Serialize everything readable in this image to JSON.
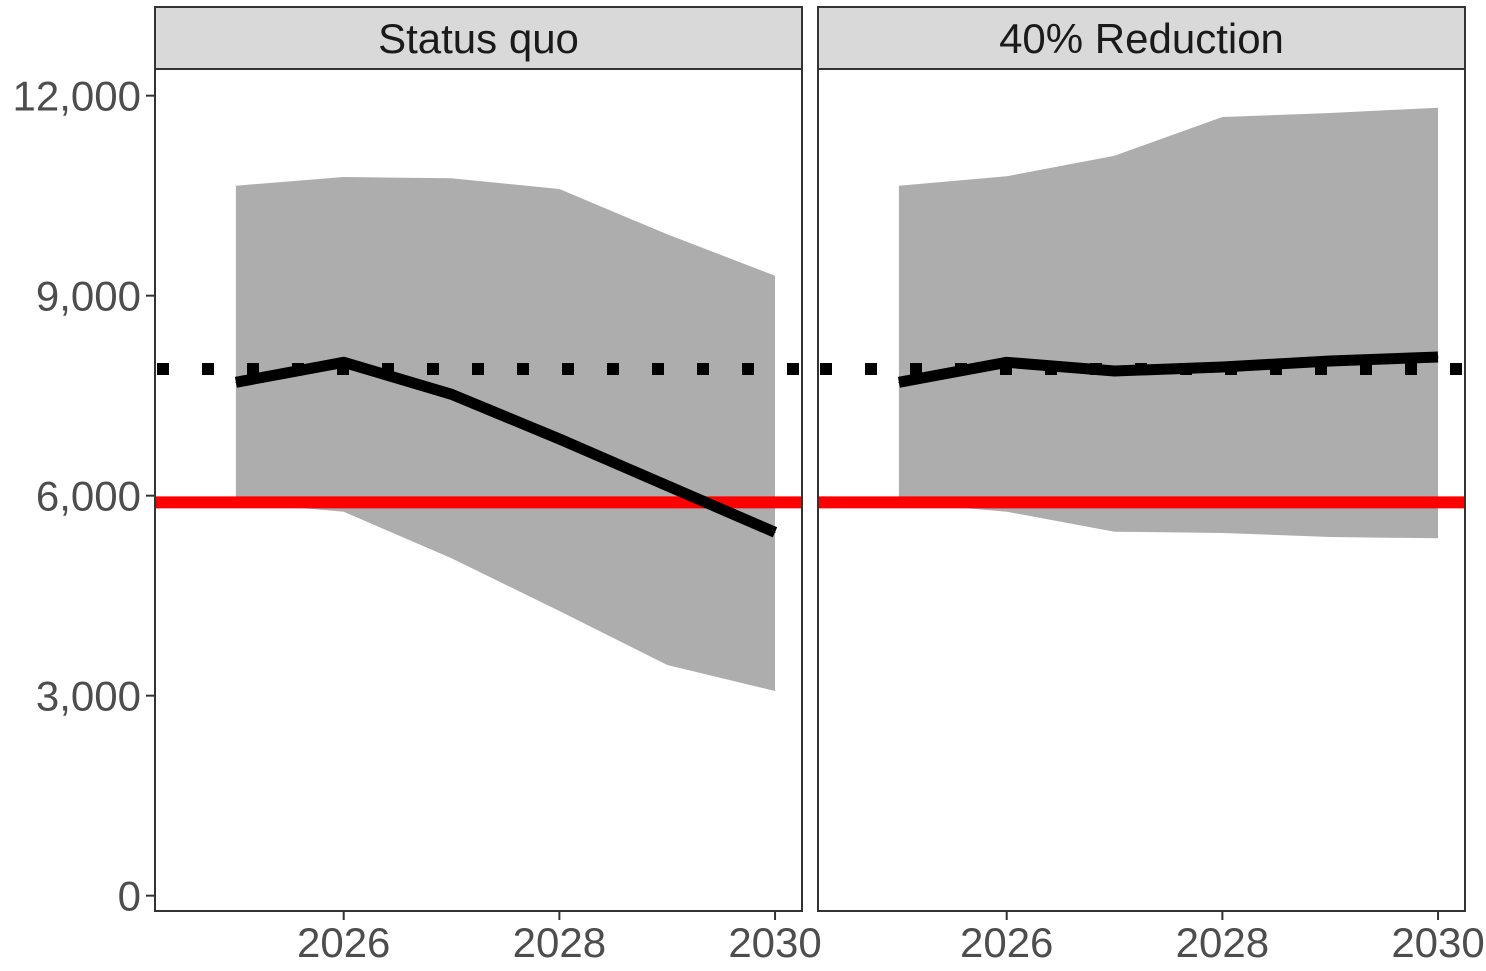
{
  "chart_data": {
    "type": "line",
    "title": "",
    "xlabel": "",
    "ylabel": "",
    "x": [
      2025,
      2026,
      2027,
      2028,
      2029,
      2030
    ],
    "xlim": [
      2024.25,
      2030.25
    ],
    "ylim": [
      -230,
      12400
    ],
    "x_ticks": [
      2026,
      2028,
      2030
    ],
    "x_tick_labels": [
      "2026",
      "2028",
      "2030"
    ],
    "y_ticks": [
      0,
      3000,
      6000,
      9000,
      12000
    ],
    "y_tick_labels": [
      "0",
      "3,000",
      "6,000",
      "9,000",
      "12,000"
    ],
    "grid": false,
    "legend": "none",
    "colors": {
      "band": "#adadad",
      "median": "#000000",
      "reference_dotted": "#000000",
      "reference_solid": "#ff0000",
      "strip": "#d9d9d9",
      "border": "#333333"
    },
    "reference_lines": [
      {
        "style": "dotted",
        "y": 7900
      },
      {
        "style": "solid",
        "y": 5900
      }
    ],
    "panels": [
      {
        "label": "Status quo",
        "series": [
          {
            "role": "median",
            "values": [
              7700,
              8000,
              7520,
              6850,
              6150,
              5450
            ]
          },
          {
            "role": "band_upper",
            "values": [
              10650,
              10780,
              10760,
              10600,
              9920,
              9300
            ]
          },
          {
            "role": "band_lower",
            "values": [
              5900,
              5760,
              5060,
              4270,
              3460,
              3070
            ]
          }
        ]
      },
      {
        "label": "40% Reduction",
        "series": [
          {
            "role": "median",
            "values": [
              7700,
              8000,
              7870,
              7930,
              8020,
              8080
            ]
          },
          {
            "role": "band_upper",
            "values": [
              10650,
              10790,
              11100,
              11680,
              11740,
              11820
            ]
          },
          {
            "role": "band_lower",
            "values": [
              5900,
              5760,
              5460,
              5440,
              5380,
              5360
            ]
          }
        ]
      }
    ]
  }
}
